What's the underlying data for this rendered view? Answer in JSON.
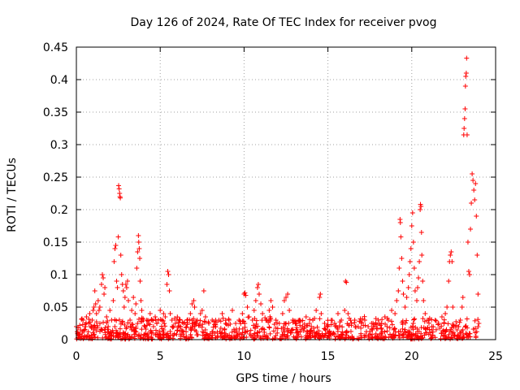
{
  "chart_data": {
    "type": "scatter",
    "title": "Day 126 of 2024, Rate Of TEC Index for receiver pvog",
    "xlabel": "GPS time / hours",
    "ylabel": "ROTI / TECUs",
    "xlim": [
      0,
      25
    ],
    "ylim": [
      0,
      0.45
    ],
    "xticks": [
      0,
      5,
      10,
      15,
      20,
      25
    ],
    "yticks": [
      0,
      0.05,
      0.1,
      0.15,
      0.2,
      0.25,
      0.3,
      0.35,
      0.4,
      0.45
    ],
    "xtick_labels": [
      "0",
      "5",
      "10",
      "15",
      "20",
      "25"
    ],
    "ytick_labels": [
      "0",
      "0.05",
      "0.1",
      "0.15",
      "0.2",
      "0.25",
      "0.3",
      "0.35",
      "0.4",
      "0.45"
    ],
    "grid": true,
    "marker": "+",
    "series": [
      {
        "name": "ROTI",
        "color": "#ff0000",
        "points": [
          [
            0.0,
            0.02
          ],
          [
            0.05,
            0.012
          ],
          [
            0.1,
            0.018
          ],
          [
            0.15,
            0.008
          ],
          [
            0.2,
            0.022
          ],
          [
            0.25,
            0.015
          ],
          [
            0.35,
            0.01
          ],
          [
            0.4,
            0.03
          ],
          [
            0.5,
            0.005
          ],
          [
            0.55,
            0.02
          ],
          [
            0.6,
            0.035
          ],
          [
            0.7,
            0.012
          ],
          [
            0.75,
            0.025
          ],
          [
            0.8,
            0.04
          ],
          [
            0.9,
            0.018
          ],
          [
            0.95,
            0.03
          ],
          [
            1.0,
            0.045
          ],
          [
            1.05,
            0.05
          ],
          [
            1.1,
            0.075
          ],
          [
            1.15,
            0.055
          ],
          [
            1.2,
            0.04
          ],
          [
            1.3,
            0.06
          ],
          [
            1.35,
            0.045
          ],
          [
            1.4,
            0.05
          ],
          [
            1.5,
            0.085
          ],
          [
            1.55,
            0.1
          ],
          [
            1.6,
            0.095
          ],
          [
            1.65,
            0.07
          ],
          [
            1.7,
            0.08
          ],
          [
            1.8,
            0.035
          ],
          [
            1.9,
            0.02
          ],
          [
            2.0,
            0.045
          ],
          [
            2.1,
            0.03
          ],
          [
            2.2,
            0.06
          ],
          [
            2.25,
            0.12
          ],
          [
            2.3,
            0.14
          ],
          [
            2.35,
            0.145
          ],
          [
            2.4,
            0.09
          ],
          [
            2.45,
            0.08
          ],
          [
            2.5,
            0.158
          ],
          [
            2.52,
            0.237
          ],
          [
            2.55,
            0.232
          ],
          [
            2.58,
            0.225
          ],
          [
            2.6,
            0.22
          ],
          [
            2.62,
            0.218
          ],
          [
            2.65,
            0.13
          ],
          [
            2.7,
            0.1
          ],
          [
            2.75,
            0.085
          ],
          [
            2.8,
            0.075
          ],
          [
            2.85,
            0.05
          ],
          [
            2.9,
            0.065
          ],
          [
            2.95,
            0.085
          ],
          [
            3.0,
            0.08
          ],
          [
            3.05,
            0.09
          ],
          [
            3.1,
            0.06
          ],
          [
            3.2,
            0.03
          ],
          [
            3.3,
            0.045
          ],
          [
            3.4,
            0.065
          ],
          [
            3.5,
            0.04
          ],
          [
            3.55,
            0.055
          ],
          [
            3.6,
            0.11
          ],
          [
            3.65,
            0.135
          ],
          [
            3.7,
            0.16
          ],
          [
            3.72,
            0.15
          ],
          [
            3.75,
            0.14
          ],
          [
            3.78,
            0.125
          ],
          [
            3.8,
            0.09
          ],
          [
            3.85,
            0.06
          ],
          [
            3.9,
            0.045
          ],
          [
            4.0,
            0.03
          ],
          [
            4.1,
            0.02
          ],
          [
            4.2,
            0.03
          ],
          [
            4.3,
            0.025
          ],
          [
            4.4,
            0.04
          ],
          [
            4.5,
            0.03
          ],
          [
            4.6,
            0.02
          ],
          [
            4.7,
            0.035
          ],
          [
            4.8,
            0.025
          ],
          [
            4.9,
            0.03
          ],
          [
            5.0,
            0.045
          ],
          [
            5.1,
            0.03
          ],
          [
            5.2,
            0.04
          ],
          [
            5.3,
            0.035
          ],
          [
            5.4,
            0.085
          ],
          [
            5.45,
            0.105
          ],
          [
            5.5,
            0.1
          ],
          [
            5.55,
            0.075
          ],
          [
            5.6,
            0.04
          ],
          [
            5.7,
            0.03
          ],
          [
            5.8,
            0.02
          ],
          [
            5.9,
            0.025
          ],
          [
            6.0,
            0.03
          ],
          [
            6.2,
            0.02
          ],
          [
            6.4,
            0.025
          ],
          [
            6.6,
            0.03
          ],
          [
            6.8,
            0.04
          ],
          [
            6.9,
            0.055
          ],
          [
            7.0,
            0.06
          ],
          [
            7.05,
            0.05
          ],
          [
            7.2,
            0.03
          ],
          [
            7.4,
            0.04
          ],
          [
            7.5,
            0.045
          ],
          [
            7.6,
            0.075
          ],
          [
            7.7,
            0.035
          ],
          [
            7.9,
            0.025
          ],
          [
            8.1,
            0.03
          ],
          [
            8.3,
            0.02
          ],
          [
            8.5,
            0.03
          ],
          [
            8.7,
            0.04
          ],
          [
            8.9,
            0.025
          ],
          [
            9.1,
            0.03
          ],
          [
            9.3,
            0.045
          ],
          [
            9.5,
            0.025
          ],
          [
            9.7,
            0.03
          ],
          [
            9.9,
            0.04
          ],
          [
            10.0,
            0.07
          ],
          [
            10.05,
            0.072
          ],
          [
            10.1,
            0.068
          ],
          [
            10.2,
            0.05
          ],
          [
            10.3,
            0.035
          ],
          [
            10.5,
            0.03
          ],
          [
            10.6,
            0.045
          ],
          [
            10.7,
            0.06
          ],
          [
            10.8,
            0.08
          ],
          [
            10.85,
            0.085
          ],
          [
            10.9,
            0.07
          ],
          [
            11.0,
            0.055
          ],
          [
            11.1,
            0.04
          ],
          [
            11.3,
            0.03
          ],
          [
            11.5,
            0.045
          ],
          [
            11.6,
            0.06
          ],
          [
            11.7,
            0.05
          ],
          [
            11.9,
            0.03
          ],
          [
            12.1,
            0.025
          ],
          [
            12.3,
            0.04
          ],
          [
            12.4,
            0.06
          ],
          [
            12.5,
            0.065
          ],
          [
            12.6,
            0.07
          ],
          [
            12.7,
            0.045
          ],
          [
            12.9,
            0.03
          ],
          [
            13.1,
            0.025
          ],
          [
            13.3,
            0.03
          ],
          [
            13.5,
            0.02
          ],
          [
            13.7,
            0.035
          ],
          [
            13.9,
            0.025
          ],
          [
            14.1,
            0.03
          ],
          [
            14.3,
            0.045
          ],
          [
            14.5,
            0.065
          ],
          [
            14.55,
            0.07
          ],
          [
            14.6,
            0.04
          ],
          [
            14.8,
            0.025
          ],
          [
            15.0,
            0.02
          ],
          [
            15.2,
            0.03
          ],
          [
            15.4,
            0.025
          ],
          [
            15.6,
            0.04
          ],
          [
            15.8,
            0.03
          ],
          [
            16.0,
            0.045
          ],
          [
            16.05,
            0.09
          ],
          [
            16.1,
            0.088
          ],
          [
            16.2,
            0.04
          ],
          [
            16.4,
            0.025
          ],
          [
            16.6,
            0.03
          ],
          [
            16.8,
            0.02
          ],
          [
            17.0,
            0.025
          ],
          [
            17.2,
            0.03
          ],
          [
            17.4,
            0.02
          ],
          [
            17.6,
            0.025
          ],
          [
            17.8,
            0.02
          ],
          [
            18.0,
            0.03
          ],
          [
            18.2,
            0.025
          ],
          [
            18.4,
            0.035
          ],
          [
            18.6,
            0.03
          ],
          [
            18.8,
            0.045
          ],
          [
            19.0,
            0.04
          ],
          [
            19.1,
            0.06
          ],
          [
            19.2,
            0.075
          ],
          [
            19.25,
            0.11
          ],
          [
            19.3,
            0.185
          ],
          [
            19.32,
            0.18
          ],
          [
            19.35,
            0.158
          ],
          [
            19.4,
            0.125
          ],
          [
            19.45,
            0.09
          ],
          [
            19.5,
            0.07
          ],
          [
            19.6,
            0.05
          ],
          [
            19.7,
            0.065
          ],
          [
            19.8,
            0.08
          ],
          [
            19.85,
            0.1
          ],
          [
            19.9,
            0.12
          ],
          [
            19.95,
            0.14
          ],
          [
            20.0,
            0.175
          ],
          [
            20.05,
            0.195
          ],
          [
            20.1,
            0.15
          ],
          [
            20.15,
            0.11
          ],
          [
            20.2,
            0.075
          ],
          [
            20.3,
            0.06
          ],
          [
            20.35,
            0.08
          ],
          [
            20.4,
            0.095
          ],
          [
            20.45,
            0.12
          ],
          [
            20.5,
            0.2
          ],
          [
            20.52,
            0.208
          ],
          [
            20.55,
            0.205
          ],
          [
            20.58,
            0.165
          ],
          [
            20.6,
            0.13
          ],
          [
            20.65,
            0.09
          ],
          [
            20.7,
            0.06
          ],
          [
            20.8,
            0.04
          ],
          [
            21.0,
            0.03
          ],
          [
            21.2,
            0.02
          ],
          [
            21.4,
            0.03
          ],
          [
            21.6,
            0.025
          ],
          [
            21.8,
            0.035
          ],
          [
            22.0,
            0.04
          ],
          [
            22.1,
            0.05
          ],
          [
            22.2,
            0.09
          ],
          [
            22.25,
            0.12
          ],
          [
            22.3,
            0.13
          ],
          [
            22.35,
            0.135
          ],
          [
            22.4,
            0.12
          ],
          [
            22.45,
            0.05
          ],
          [
            22.5,
            0.02
          ],
          [
            22.7,
            0.015
          ],
          [
            22.9,
            0.03
          ],
          [
            23.0,
            0.05
          ],
          [
            23.05,
            0.065
          ],
          [
            23.1,
            0.315
          ],
          [
            23.12,
            0.325
          ],
          [
            23.15,
            0.34
          ],
          [
            23.18,
            0.355
          ],
          [
            23.2,
            0.39
          ],
          [
            23.22,
            0.405
          ],
          [
            23.25,
            0.41
          ],
          [
            23.27,
            0.433
          ],
          [
            23.3,
            0.315
          ],
          [
            23.35,
            0.15
          ],
          [
            23.4,
            0.105
          ],
          [
            23.45,
            0.1
          ],
          [
            23.5,
            0.17
          ],
          [
            23.55,
            0.21
          ],
          [
            23.6,
            0.255
          ],
          [
            23.65,
            0.245
          ],
          [
            23.7,
            0.23
          ],
          [
            23.75,
            0.215
          ],
          [
            23.8,
            0.24
          ],
          [
            23.85,
            0.19
          ],
          [
            23.9,
            0.13
          ],
          [
            23.95,
            0.07
          ],
          [
            24.0,
            0.025
          ]
        ]
      }
    ]
  }
}
